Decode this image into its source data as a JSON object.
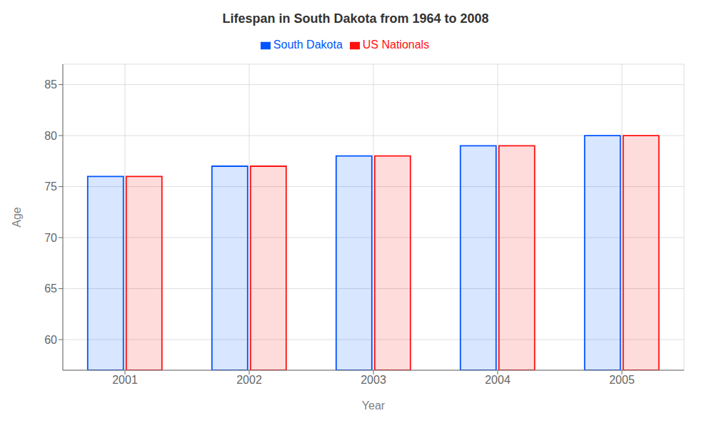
{
  "chart_data": {
    "type": "bar",
    "title": "Lifespan in South Dakota from 1964 to 2008",
    "xlabel": "Year",
    "ylabel": "Age",
    "categories": [
      "2001",
      "2002",
      "2003",
      "2004",
      "2005"
    ],
    "series": [
      {
        "name": "South Dakota",
        "color": "#0055ff",
        "values": [
          76,
          77,
          78,
          79,
          80
        ]
      },
      {
        "name": "US Nationals",
        "color": "#ff1111",
        "values": [
          76,
          77,
          78,
          79,
          80
        ]
      }
    ],
    "ylim": [
      57,
      87
    ],
    "yticks": [
      60,
      65,
      70,
      75,
      80,
      85
    ],
    "grid": true,
    "legend": "top"
  }
}
